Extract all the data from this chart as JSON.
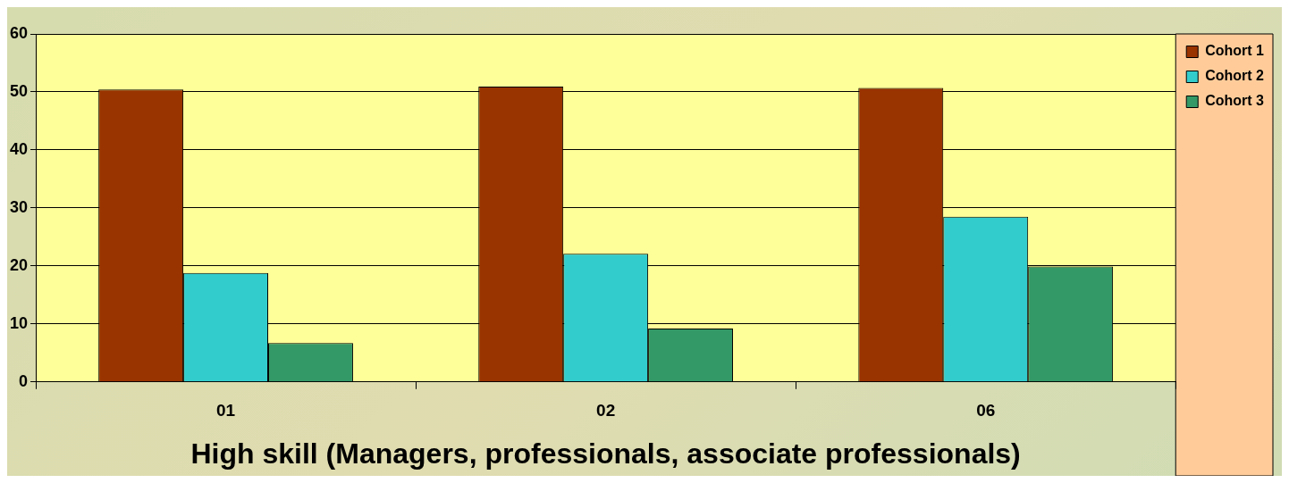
{
  "chart_data": {
    "type": "bar",
    "xlabel": "High skill (Managers, professionals, associate professionals)",
    "categories": [
      "01",
      "02",
      "06"
    ],
    "series": [
      {
        "name": "Cohort 1",
        "color": "#993300",
        "values": [
          50.4,
          50.9,
          50.7
        ]
      },
      {
        "name": "Cohort 2",
        "color": "#33cccc",
        "values": [
          18.8,
          22.1,
          28.5
        ]
      },
      {
        "name": "Cohort 3",
        "color": "#339966",
        "values": [
          6.7,
          9.2,
          19.9
        ]
      }
    ],
    "ylim": [
      0,
      60
    ],
    "yticks": [
      0,
      10,
      20,
      30,
      40,
      50,
      60
    ],
    "grid": "y",
    "legend": "top right"
  }
}
